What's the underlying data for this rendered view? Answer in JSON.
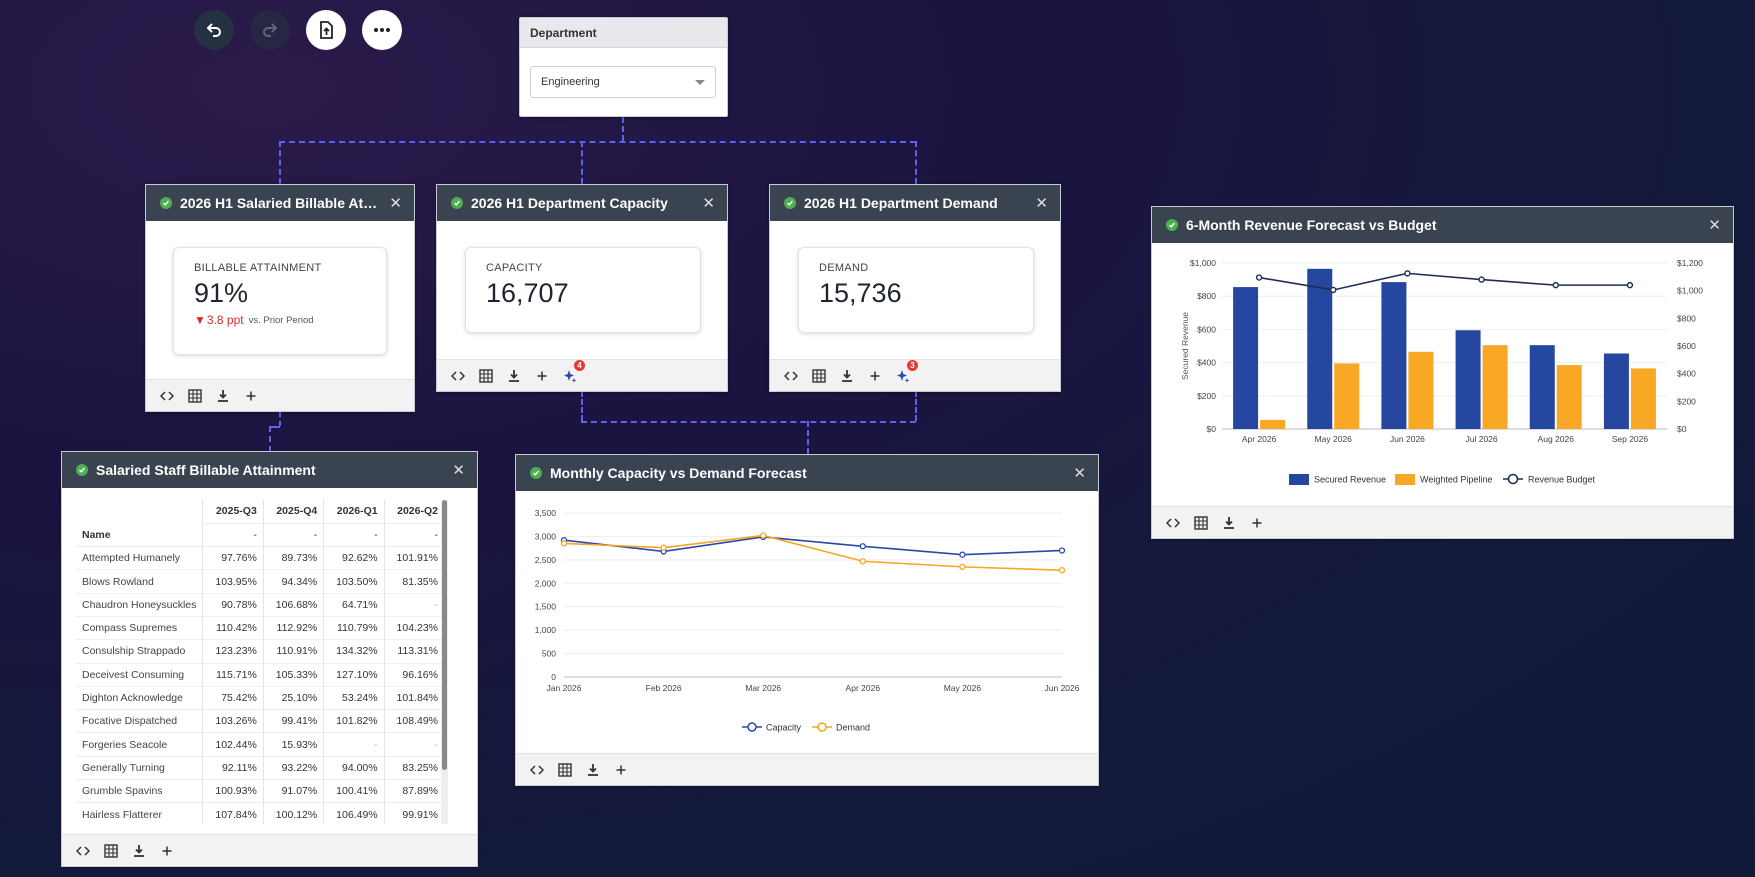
{
  "toolbar": {
    "undo": "undo-icon",
    "redo": "redo-icon",
    "export": "file-upload-icon",
    "more": "more-icon"
  },
  "department": {
    "label": "Department",
    "value": "Engineering"
  },
  "kpi_billable": {
    "title": "2026 H1 Salaried Billable Att...",
    "label": "BILLABLE ATTAINMENT",
    "value": "91%",
    "delta": "3.8 ppt",
    "delta_note": "vs. Prior Period"
  },
  "kpi_capacity": {
    "title": "2026 H1 Department Capacity",
    "label": "CAPACITY",
    "value": "16,707",
    "badge": "4"
  },
  "kpi_demand": {
    "title": "2026 H1 Department Demand",
    "label": "DEMAND",
    "value": "15,736",
    "badge": "3"
  },
  "staff_table": {
    "title": "Salaried Staff Billable Attainment",
    "columns": [
      "2025-Q3",
      "2025-Q4",
      "2026-Q1",
      "2026-Q2"
    ],
    "name_header": "Name",
    "header_row": [
      "-",
      "-",
      "-",
      "-"
    ],
    "rows": [
      [
        "Attempted Humanely",
        "97.76%",
        "89.73%",
        "92.62%",
        "101.91%"
      ],
      [
        "Blows Rowland",
        "103.95%",
        "94.34%",
        "103.50%",
        "81.35%"
      ],
      [
        "Chaudron Honeysuckles",
        "90.78%",
        "106.68%",
        "64.71%",
        "-"
      ],
      [
        "Compass Supremes",
        "110.42%",
        "112.92%",
        "110.79%",
        "104.23%"
      ],
      [
        "Consulship Strappado",
        "123.23%",
        "110.91%",
        "134.32%",
        "113.31%"
      ],
      [
        "Deceivest Consuming",
        "115.71%",
        "105.33%",
        "127.10%",
        "96.16%"
      ],
      [
        "Dighton Acknowledge",
        "75.42%",
        "25.10%",
        "53.24%",
        "101.84%"
      ],
      [
        "Focative Dispatched",
        "103.26%",
        "99.41%",
        "101.82%",
        "108.49%"
      ],
      [
        "Forgeries Seacole",
        "102.44%",
        "15.93%",
        "-",
        "-"
      ],
      [
        "Generally Turning",
        "92.11%",
        "93.22%",
        "94.00%",
        "83.25%"
      ],
      [
        "Grumble Spavins",
        "100.93%",
        "91.07%",
        "100.41%",
        "87.89%"
      ],
      [
        "Hairless Flatterer",
        "107.84%",
        "100.12%",
        "106.49%",
        "99.91%"
      ]
    ]
  },
  "chart_data": [
    {
      "type": "line",
      "title": "Monthly Capacity vs Demand Forecast",
      "categories": [
        "Jan 2026",
        "Feb 2026",
        "Mar 2026",
        "Apr 2026",
        "May 2026",
        "Jun 2026"
      ],
      "series": [
        {
          "name": "Capacity",
          "values": [
            2920,
            2680,
            2990,
            2790,
            2610,
            2700
          ],
          "color": "#2a4aa8"
        },
        {
          "name": "Demand",
          "values": [
            2850,
            2760,
            3020,
            2470,
            2350,
            2280
          ],
          "color": "#f5a623"
        }
      ],
      "ylim": [
        0,
        3500
      ],
      "yticks": [
        "0",
        "500",
        "1,000",
        "1,500",
        "2,000",
        "2,500",
        "3,000",
        "3,500"
      ]
    },
    {
      "type": "bar",
      "title": "6-Month Revenue Forecast vs Budget",
      "categories": [
        "Apr 2026",
        "May 2026",
        "Jun 2026",
        "Jul 2026",
        "Aug 2026",
        "Sep 2026"
      ],
      "series": [
        {
          "name": "Secured Revenue",
          "values": [
            855,
            965,
            885,
            595,
            505,
            455
          ],
          "color": "#26479f"
        },
        {
          "name": "Weighted Pipeline",
          "values": [
            55,
            395,
            465,
            505,
            385,
            365
          ],
          "color": "#f8a825"
        },
        {
          "name": "Revenue Budget",
          "type": "line",
          "values": [
            1095,
            1005,
            1125,
            1080,
            1040,
            1040
          ],
          "color": "#1e2d55"
        }
      ],
      "ylabel": "Secured Revenue",
      "ylim": [
        0,
        1000
      ],
      "ylim_right": [
        0,
        1200
      ],
      "yticks_left": [
        "$0",
        "$200",
        "$400",
        "$600",
        "$800",
        "$1,000"
      ],
      "yticks_right": [
        "$0",
        "$200",
        "$400",
        "$600",
        "$800",
        "$1,000",
        "$1,200"
      ]
    }
  ]
}
